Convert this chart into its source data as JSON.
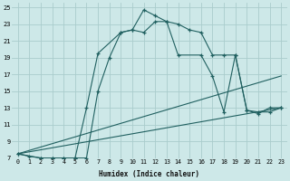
{
  "xlabel": "Humidex (Indice chaleur)",
  "background_color": "#cde8e8",
  "grid_color": "#aacccc",
  "line_color": "#206060",
  "xlim": [
    -0.5,
    23.5
  ],
  "ylim": [
    7,
    25.5
  ],
  "xticks": [
    0,
    1,
    2,
    3,
    4,
    5,
    6,
    7,
    8,
    9,
    10,
    11,
    12,
    13,
    14,
    15,
    16,
    17,
    18,
    19,
    20,
    21,
    22,
    23
  ],
  "yticks": [
    7,
    9,
    11,
    13,
    15,
    17,
    19,
    21,
    23,
    25
  ],
  "line1_x": [
    0,
    1,
    2,
    3,
    4,
    5,
    6,
    7,
    8,
    9,
    10,
    11,
    12,
    13,
    14,
    15,
    16,
    17,
    18,
    19,
    20,
    21,
    22,
    23
  ],
  "line1_y": [
    7.5,
    7.2,
    7.0,
    7.0,
    7.0,
    7.0,
    7.0,
    15.0,
    19.0,
    22.0,
    22.3,
    24.7,
    24.0,
    23.3,
    23.0,
    22.3,
    22.0,
    19.3,
    19.3,
    19.3,
    12.7,
    12.3,
    13.0,
    13.0
  ],
  "line2_x": [
    0,
    2,
    3,
    4,
    5,
    6,
    7,
    9,
    10,
    11,
    12,
    13,
    14,
    16,
    17,
    18,
    19,
    20,
    21,
    22,
    23
  ],
  "line2_y": [
    7.5,
    7.0,
    7.0,
    7.0,
    7.0,
    13.0,
    19.5,
    22.0,
    22.3,
    22.0,
    23.3,
    23.3,
    19.3,
    19.3,
    16.8,
    12.5,
    19.3,
    12.7,
    12.5,
    12.5,
    13.0
  ],
  "line3_x": [
    0,
    23
  ],
  "line3_y": [
    7.5,
    13.0
  ],
  "line4_x": [
    0,
    23
  ],
  "line4_y": [
    7.5,
    16.8
  ]
}
